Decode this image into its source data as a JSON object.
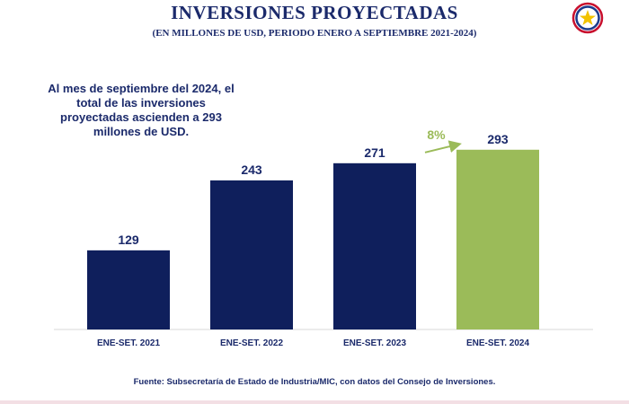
{
  "header": {
    "title": "INVERSIONES PROYECTADAS",
    "subtitle": "(EN MILLONES DE USD, PERIODO ENERO A SEPTIEMBRE 2021-2024)"
  },
  "note": "Al mes de septiembre del 2024, el total de las inversiones proyectadas ascienden a 293 millones de USD.",
  "source": "Fuente: Subsecretaría de Estado de Industria/MIC, con datos del Consejo de Inversiones.",
  "colors": {
    "primary": "#0f1f5c",
    "highlight": "#9bbb59",
    "text": "#1b2a6b"
  },
  "chart_data": {
    "type": "bar",
    "title": "",
    "xlabel": "",
    "ylabel": "",
    "categories": [
      "ENE-SET. 2021",
      "ENE-SET. 2022",
      "ENE-SET. 2023",
      "ENE-SET. 2024"
    ],
    "values": [
      129,
      243,
      271,
      293
    ],
    "data_labels": [
      "129",
      "243",
      "271",
      "293"
    ],
    "highlight_index": 3,
    "ylim": [
      0,
      300
    ],
    "grid": false,
    "growth_annotation": {
      "label": "8%",
      "from_index": 2,
      "to_index": 3
    }
  }
}
